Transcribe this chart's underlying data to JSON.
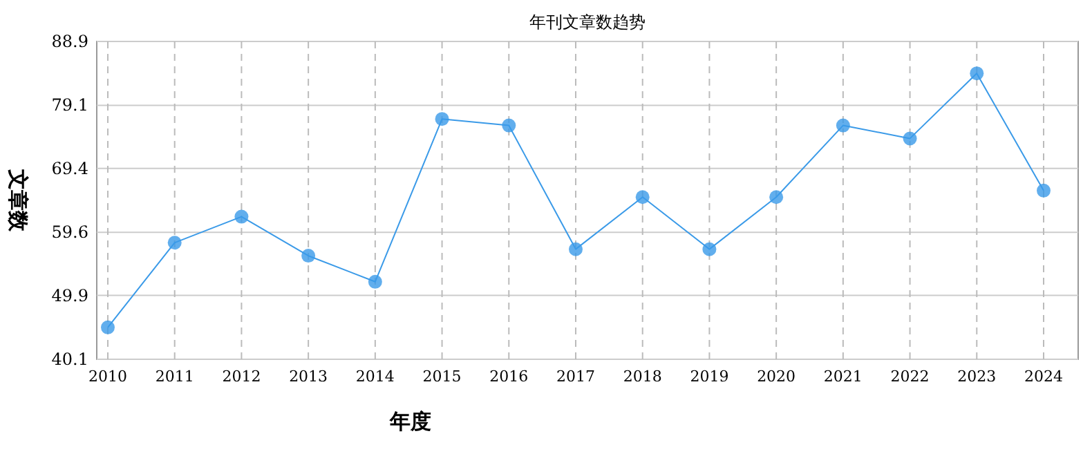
{
  "chart_data": {
    "type": "line",
    "title": "年刊文章数趋势",
    "xlabel": "年度",
    "ylabel": "文章数",
    "categories": [
      "2010",
      "2011",
      "2012",
      "2013",
      "2014",
      "2015",
      "2016",
      "2017",
      "2018",
      "2019",
      "2020",
      "2021",
      "2022",
      "2023",
      "2024"
    ],
    "values": [
      45,
      58,
      62,
      56,
      52,
      77,
      76,
      57,
      65,
      57,
      65,
      76,
      74,
      84,
      66
    ],
    "color": "#3a9ae8",
    "ylim": [
      40.1,
      88.9
    ],
    "yticks": [
      40.1,
      49.9,
      59.6,
      69.4,
      79.1,
      88.9
    ],
    "grid": true,
    "marker": "circle"
  }
}
